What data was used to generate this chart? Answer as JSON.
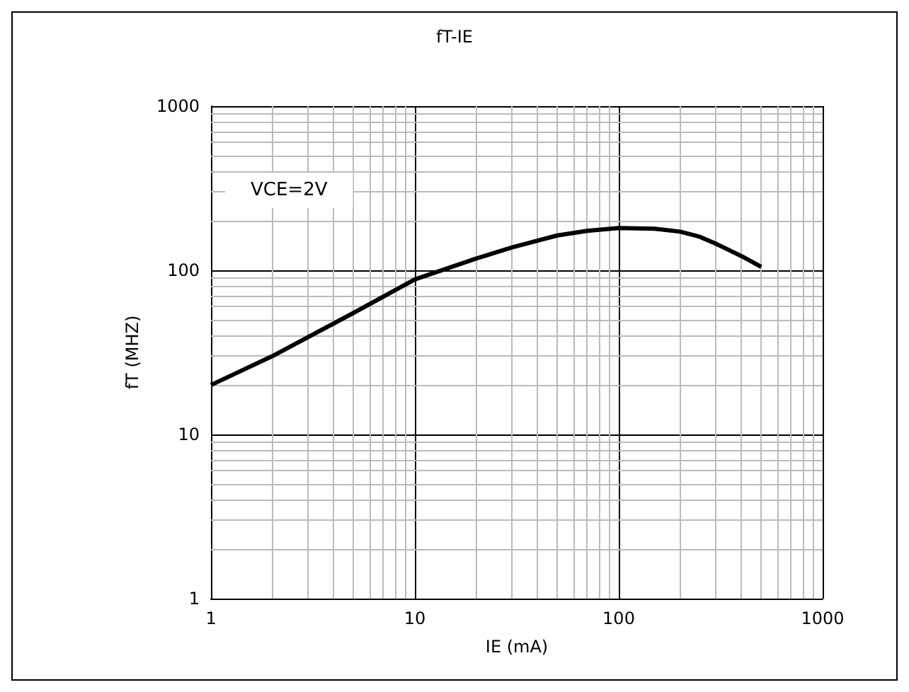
{
  "chart_data": {
    "type": "line",
    "title": "fT-IE",
    "xlabel": "IE (mA)",
    "ylabel": "fT (MHZ)",
    "log": "xy",
    "xlim": [
      1,
      1000
    ],
    "xticks": [
      1,
      10,
      100,
      1000
    ],
    "ylim": [
      1,
      1000
    ],
    "yticks": [
      1,
      10,
      100,
      1000
    ],
    "grid": true,
    "marker": "none",
    "line_style": "solid",
    "annotations": [
      {
        "text": "VCE=2V"
      }
    ],
    "series": [
      {
        "color": "#000000",
        "x": [
          1,
          2,
          5,
          10,
          20,
          30,
          50,
          70,
          100,
          150,
          200,
          250,
          300,
          400,
          500
        ],
        "values": [
          20,
          30,
          55,
          88,
          118,
          138,
          163,
          174,
          181,
          179,
          172,
          160,
          145,
          122,
          105
        ]
      }
    ]
  }
}
